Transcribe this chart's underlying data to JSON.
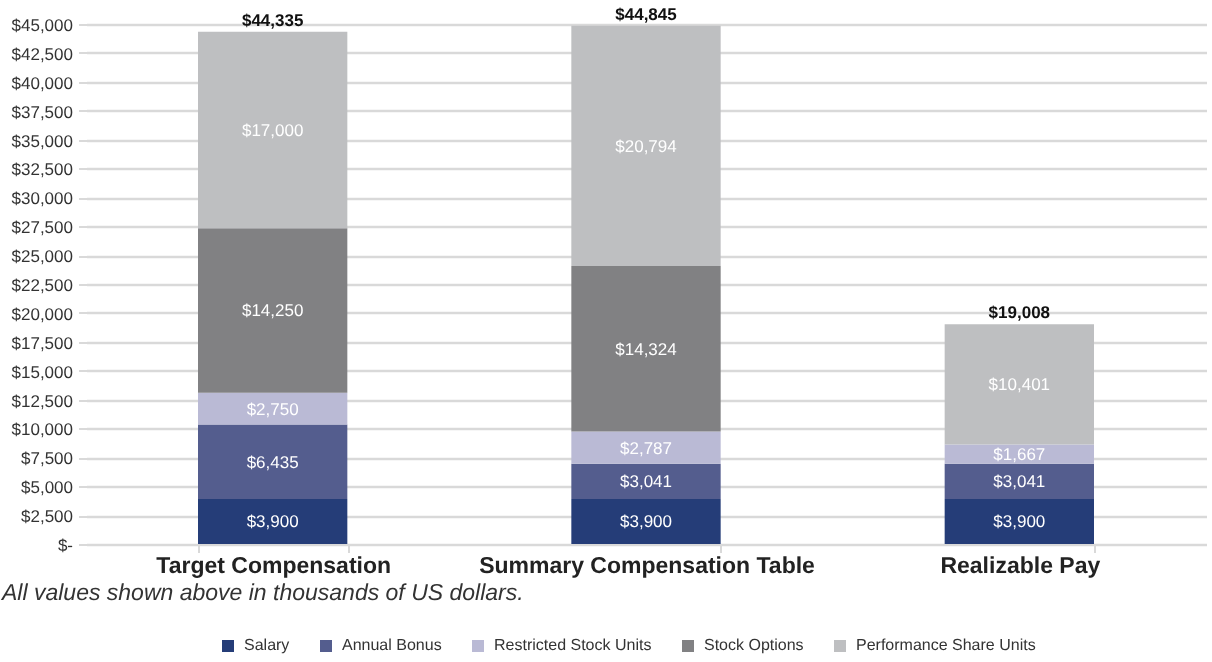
{
  "chart_data": {
    "type": "bar",
    "stacked": true,
    "categories": [
      "Target Compensation",
      "Summary Compensation Table",
      "Realizable Pay"
    ],
    "series": [
      {
        "name": "Salary",
        "color": "#253d78",
        "values": [
          3900,
          3900,
          3900
        ],
        "value_labels": [
          "$3,900",
          "$3,900",
          "$3,900"
        ]
      },
      {
        "name": "Annual Bonus",
        "color": "#545d8e",
        "values": [
          6435,
          3041,
          3041
        ],
        "value_labels": [
          "$6,435",
          "$3,041",
          "$3,041"
        ]
      },
      {
        "name": "Restricted Stock Units",
        "color": "#babad5",
        "values": [
          2750,
          2787,
          1667
        ],
        "value_labels": [
          "$2,750",
          "$2,787",
          "$1,667"
        ]
      },
      {
        "name": "Stock Options",
        "color": "#818183",
        "values": [
          14250,
          14324,
          null
        ],
        "value_labels": [
          "$14,250",
          "$14,324",
          null
        ]
      },
      {
        "name": "Performance Share Units",
        "color": "#bebfc1",
        "values": [
          17000,
          20794,
          10401
        ],
        "value_labels": [
          "$17,000",
          "$20,794",
          "$10,401"
        ]
      }
    ],
    "totals": [
      "$44,335",
      "$44,845",
      "$19,008"
    ],
    "ylim": [
      0,
      45000
    ],
    "yticks": [
      {
        "value": 0,
        "label": "$-"
      },
      {
        "value": 2500,
        "label": "$2,500"
      },
      {
        "value": 5000,
        "label": "$5,000"
      },
      {
        "value": 7500,
        "label": "$7,500"
      },
      {
        "value": 10000,
        "label": "$10,000"
      },
      {
        "value": 12500,
        "label": "$12,500"
      },
      {
        "value": 15000,
        "label": "$15,000"
      },
      {
        "value": 17500,
        "label": "$17,500"
      },
      {
        "value": 20000,
        "label": "$20,000"
      },
      {
        "value": 22500,
        "label": "$22,500"
      },
      {
        "value": 25000,
        "label": "$25,000"
      },
      {
        "value": 27500,
        "label": "$27,500"
      },
      {
        "value": 30000,
        "label": "$30,000"
      },
      {
        "value": 32500,
        "label": "$32,500"
      },
      {
        "value": 35000,
        "label": "$35,000"
      },
      {
        "value": 37500,
        "label": "$37,500"
      },
      {
        "value": 40000,
        "label": "$40,000"
      },
      {
        "value": 42500,
        "label": "$42,500"
      },
      {
        "value": 45000,
        "label": "$45,000"
      }
    ],
    "grid": "y",
    "legend": "bottom",
    "annotations": [
      "All values shown above in thousands of US dollars."
    ]
  }
}
